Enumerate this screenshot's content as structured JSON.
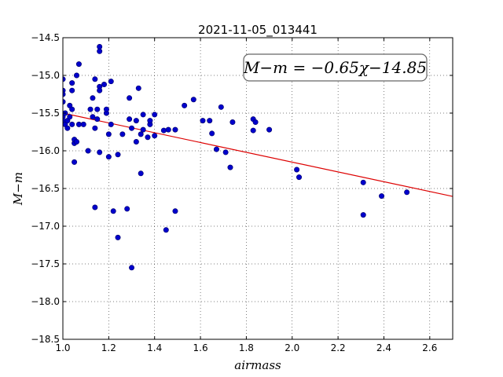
{
  "chart_data": {
    "type": "scatter",
    "title": "2021-11-05_013441",
    "xlabel": "airmass",
    "ylabel": "M−m",
    "xlim": [
      1.0,
      2.7
    ],
    "ylim": [
      -18.5,
      -14.5
    ],
    "x_ticks": [
      "1.0",
      "1.2",
      "1.4",
      "1.6",
      "1.8",
      "2.0",
      "2.2",
      "2.4",
      "2.6"
    ],
    "y_ticks": [
      "−14.5",
      "−15.0",
      "−15.5",
      "−16.0",
      "−16.5",
      "−17.0",
      "−17.5",
      "−18.0",
      "−18.5"
    ],
    "grid": true,
    "annotation": "M−m = −0.65χ−14.85",
    "colors": {
      "points": "#0000cc",
      "points_edge": "#000066",
      "fit_line": "#dd0000"
    },
    "fit_line": {
      "slope": -0.65,
      "intercept": -14.85,
      "x_range": [
        1.0,
        2.7
      ]
    },
    "series": [
      {
        "points": [
          [
            1.0,
            -15.05
          ],
          [
            1.0,
            -15.2
          ],
          [
            1.0,
            -15.25
          ],
          [
            1.0,
            -15.35
          ],
          [
            1.0,
            -15.55
          ],
          [
            1.0,
            -15.6
          ],
          [
            1.01,
            -15.5
          ],
          [
            1.01,
            -15.65
          ],
          [
            1.02,
            -15.7
          ],
          [
            1.02,
            -15.6
          ],
          [
            1.03,
            -15.55
          ],
          [
            1.03,
            -15.4
          ],
          [
            1.04,
            -15.1
          ],
          [
            1.04,
            -15.2
          ],
          [
            1.04,
            -15.45
          ],
          [
            1.04,
            -15.65
          ],
          [
            1.05,
            -15.9
          ],
          [
            1.05,
            -15.85
          ],
          [
            1.05,
            -16.15
          ],
          [
            1.06,
            -15.88
          ],
          [
            1.06,
            -15.0
          ],
          [
            1.07,
            -14.85
          ],
          [
            1.07,
            -15.65
          ],
          [
            1.09,
            -15.65
          ],
          [
            1.11,
            -16.0
          ],
          [
            1.12,
            -15.45
          ],
          [
            1.13,
            -15.3
          ],
          [
            1.13,
            -15.55
          ],
          [
            1.14,
            -15.05
          ],
          [
            1.14,
            -15.7
          ],
          [
            1.14,
            -16.75
          ],
          [
            1.15,
            -15.58
          ],
          [
            1.15,
            -15.45
          ],
          [
            1.16,
            -14.62
          ],
          [
            1.16,
            -14.68
          ],
          [
            1.16,
            -15.15
          ],
          [
            1.16,
            -15.2
          ],
          [
            1.16,
            -16.02
          ],
          [
            1.18,
            -15.12
          ],
          [
            1.19,
            -15.5
          ],
          [
            1.19,
            -15.45
          ],
          [
            1.2,
            -15.78
          ],
          [
            1.2,
            -16.08
          ],
          [
            1.21,
            -15.08
          ],
          [
            1.21,
            -15.65
          ],
          [
            1.22,
            -16.8
          ],
          [
            1.24,
            -16.05
          ],
          [
            1.24,
            -17.15
          ],
          [
            1.26,
            -15.78
          ],
          [
            1.28,
            -16.77
          ],
          [
            1.29,
            -15.3
          ],
          [
            1.29,
            -15.58
          ],
          [
            1.3,
            -15.7
          ],
          [
            1.3,
            -17.55
          ],
          [
            1.32,
            -15.6
          ],
          [
            1.32,
            -15.88
          ],
          [
            1.33,
            -15.17
          ],
          [
            1.34,
            -15.78
          ],
          [
            1.34,
            -16.3
          ],
          [
            1.35,
            -15.52
          ],
          [
            1.35,
            -15.72
          ],
          [
            1.37,
            -15.82
          ],
          [
            1.38,
            -15.65
          ],
          [
            1.38,
            -15.6
          ],
          [
            1.4,
            -15.52
          ],
          [
            1.4,
            -15.8
          ],
          [
            1.44,
            -15.73
          ],
          [
            1.45,
            -17.05
          ],
          [
            1.46,
            -15.72
          ],
          [
            1.49,
            -15.72
          ],
          [
            1.49,
            -16.8
          ],
          [
            1.53,
            -15.4
          ],
          [
            1.57,
            -15.32
          ],
          [
            1.61,
            -15.6
          ],
          [
            1.64,
            -15.6
          ],
          [
            1.65,
            -15.77
          ],
          [
            1.67,
            -15.98
          ],
          [
            1.69,
            -15.42
          ],
          [
            1.71,
            -16.02
          ],
          [
            1.73,
            -16.22
          ],
          [
            1.74,
            -15.62
          ],
          [
            1.83,
            -15.58
          ],
          [
            1.83,
            -15.73
          ],
          [
            1.84,
            -15.62
          ],
          [
            1.9,
            -15.72
          ],
          [
            2.02,
            -16.25
          ],
          [
            2.03,
            -16.35
          ],
          [
            2.31,
            -16.42
          ],
          [
            2.31,
            -16.85
          ],
          [
            2.39,
            -16.6
          ],
          [
            2.5,
            -16.55
          ]
        ]
      }
    ]
  }
}
